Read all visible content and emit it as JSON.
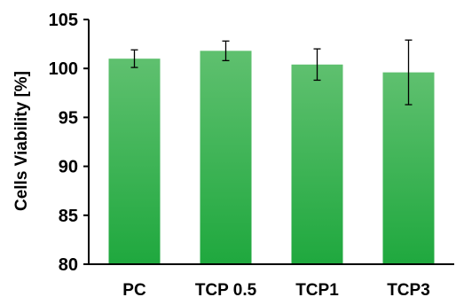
{
  "chart_data": {
    "type": "bar",
    "title": "",
    "xlabel": "",
    "ylabel": "Cells Viability [%]",
    "categories": [
      "PC",
      "TCP 0.5",
      "TCP1",
      "TCP3"
    ],
    "values": [
      101.0,
      101.8,
      100.4,
      99.6
    ],
    "errors": [
      0.9,
      1.0,
      1.6,
      3.3
    ],
    "ylim": [
      80,
      105
    ],
    "yticks": [
      80,
      85,
      90,
      95,
      100,
      105
    ],
    "ytick_labels": [
      "80",
      "85",
      "90",
      "95",
      "100",
      "105"
    ],
    "grid": false,
    "legend": "none",
    "bar_color_top": "#5fc06f",
    "bar_color_bottom": "#1fa83e",
    "error_bar_color": "#000000",
    "axis_color": "#000000"
  }
}
